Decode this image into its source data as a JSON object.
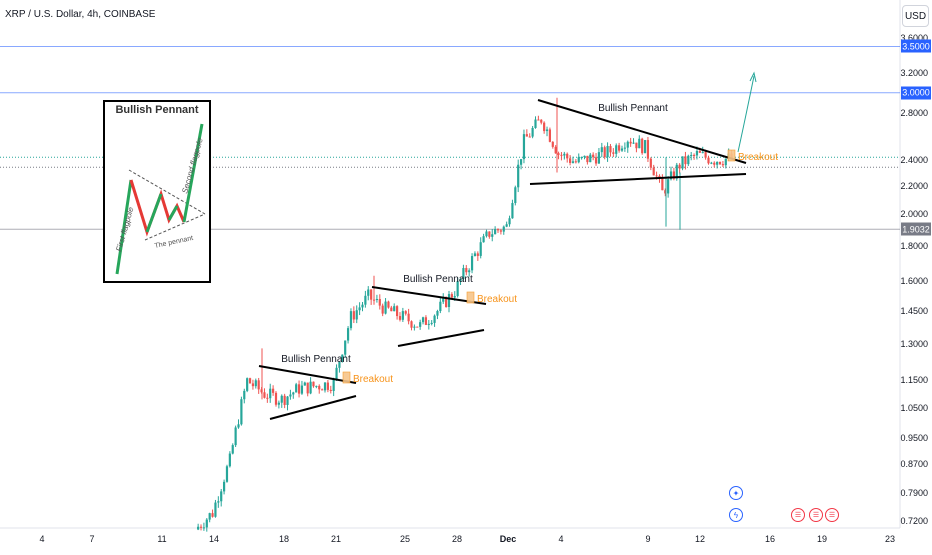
{
  "header": {
    "symbol": "XRP / U.S. Dollar, 4h, COINBASE",
    "currency_button": "USD"
  },
  "colors": {
    "up": "#26a69a",
    "down": "#ef5350",
    "pattern_line": "#000000",
    "breakout": "#f7931a",
    "level_line": "#2962ff",
    "forecast_arrow": "#26a69a"
  },
  "annotations": {
    "pennant_label": "Bullish Pennant",
    "breakout_label": "Breakout"
  },
  "inset": {
    "title": "Bullish Pennant",
    "first_flagpole": "First flagpole",
    "second_flagpole": "Second flagpole",
    "the_pennant": "The pennant"
  },
  "price_labels": [
    {
      "value": "3.5000",
      "color": "#2962ff"
    },
    {
      "value": "3.0000",
      "color": "#2962ff"
    },
    {
      "value": "1.9032",
      "color": "#787b86"
    }
  ],
  "bottom_badges": {
    "event_icons": [
      "star-icon",
      "lightning-icon"
    ],
    "flag_icons": [
      "us-flag-icon",
      "us-flag-icon",
      "us-flag-icon"
    ]
  },
  "chart_data": {
    "type": "candlestick",
    "title": "XRP / U.S. Dollar, 4h, COINBASE",
    "y_scale": "log",
    "ylim": [
      0.7,
      3.75
    ],
    "y_ticks": [
      "3.6000",
      "3.2000",
      "2.8000",
      "2.4000",
      "2.2000",
      "2.0000",
      "1.8000",
      "1.6000",
      "1.4500",
      "1.3000",
      "1.1500",
      "1.0500",
      "0.9500",
      "0.8700",
      "0.7900",
      "0.7200"
    ],
    "x_ticks": [
      "4",
      "7",
      "11",
      "14",
      "18",
      "21",
      "25",
      "28",
      "Dec",
      "4",
      "9",
      "12",
      "16",
      "19",
      "23"
    ],
    "horizontal_levels": [
      3.5,
      3.0,
      1.9032
    ],
    "pennants": [
      {
        "label": "Bullish Pennant",
        "breakout_price": 1.16
      },
      {
        "label": "Bullish Pennant",
        "breakout_price": 1.52
      },
      {
        "label": "Bullish Pennant",
        "breakout_price": 2.42
      }
    ],
    "price_path": [
      {
        "t": "Nov 13",
        "close": 0.7
      },
      {
        "t": "Nov 14",
        "close": 0.74
      },
      {
        "t": "Nov 15",
        "close": 0.88
      },
      {
        "t": "Nov 16",
        "close": 1.15
      },
      {
        "t": "Nov 17",
        "close": 1.1
      },
      {
        "t": "Nov 18",
        "close": 1.08
      },
      {
        "t": "Nov 19",
        "close": 1.12
      },
      {
        "t": "Nov 20",
        "close": 1.13
      },
      {
        "t": "Nov 21",
        "close": 1.14
      },
      {
        "t": "Nov 22",
        "close": 1.42
      },
      {
        "t": "Nov 23",
        "close": 1.52
      },
      {
        "t": "Nov 24",
        "close": 1.46
      },
      {
        "t": "Nov 25",
        "close": 1.42
      },
      {
        "t": "Nov 26",
        "close": 1.38
      },
      {
        "t": "Nov 27",
        "close": 1.45
      },
      {
        "t": "Nov 28",
        "close": 1.55
      },
      {
        "t": "Nov 29",
        "close": 1.72
      },
      {
        "t": "Nov 30",
        "close": 1.88
      },
      {
        "t": "Dec 1",
        "close": 1.92
      },
      {
        "t": "Dec 2",
        "close": 2.55
      },
      {
        "t": "Dec 3",
        "close": 2.75
      },
      {
        "t": "Dec 4",
        "close": 2.45
      },
      {
        "t": "Dec 5",
        "close": 2.38
      },
      {
        "t": "Dec 6",
        "close": 2.42
      },
      {
        "t": "Dec 7",
        "close": 2.47
      },
      {
        "t": "Dec 8",
        "close": 2.58
      },
      {
        "t": "Dec 9",
        "close": 2.5
      },
      {
        "t": "Dec 10",
        "close": 2.15
      },
      {
        "t": "Dec 11",
        "close": 2.36
      },
      {
        "t": "Dec 12",
        "close": 2.44
      },
      {
        "t": "Dec 13",
        "close": 2.4
      },
      {
        "t": "Dec 14",
        "close": 2.41
      }
    ]
  }
}
